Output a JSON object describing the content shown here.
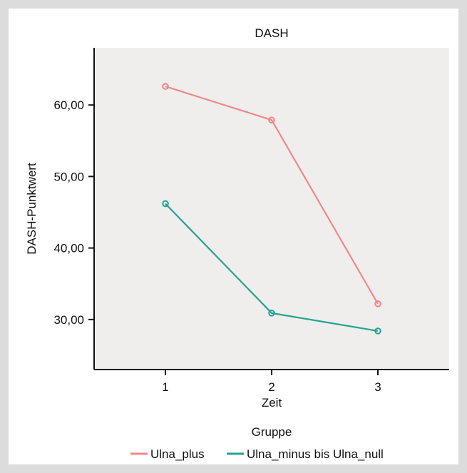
{
  "chart_data": {
    "type": "line",
    "title": "DASH",
    "xlabel": "Zeit",
    "ylabel": "DASH-Punktwert",
    "categories": [
      "1",
      "2",
      "3"
    ],
    "y_ticks": [
      "30,00",
      "40,00",
      "50,00",
      "60,00"
    ],
    "y_tick_values": [
      30,
      40,
      50,
      60
    ],
    "ylim": [
      23,
      68
    ],
    "grid": false,
    "legend_title": "Gruppe",
    "legend_position": "bottom",
    "series": [
      {
        "name": "Ulna_plus",
        "color": "#f0888a",
        "values": [
          62.6,
          57.9,
          32.2
        ]
      },
      {
        "name": "Ulna_minus bis Ulna_null",
        "color": "#27a391",
        "values": [
          46.2,
          30.9,
          28.4
        ]
      }
    ]
  }
}
